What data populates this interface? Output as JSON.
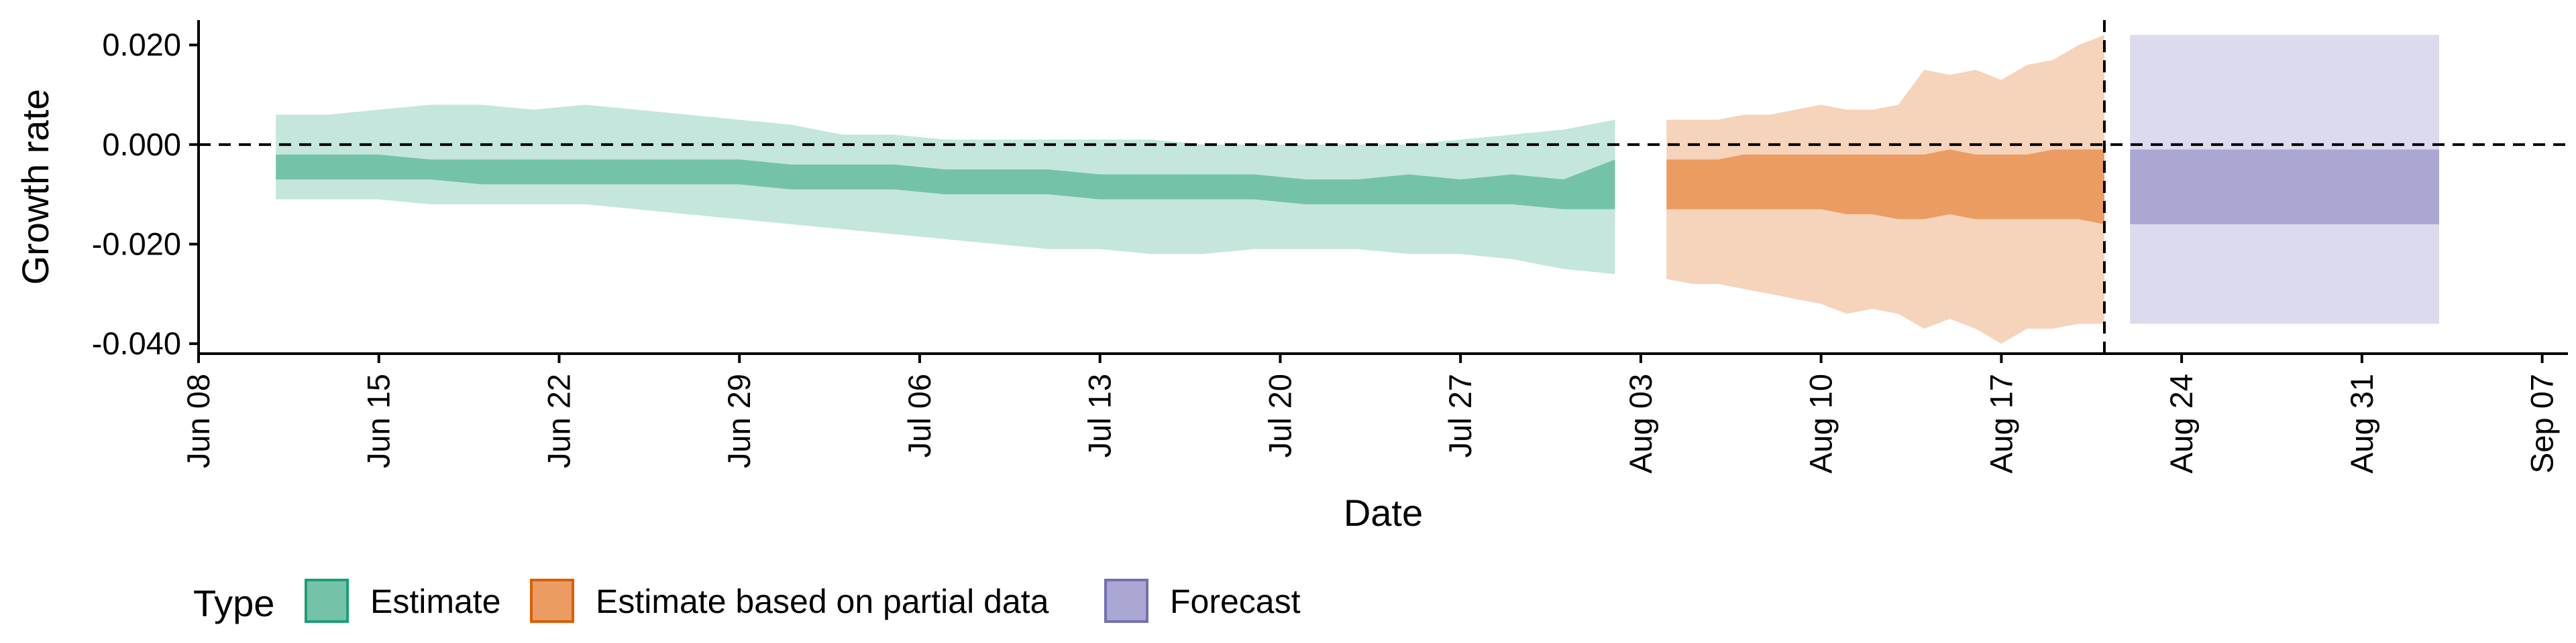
{
  "chart_data": {
    "type": "area",
    "xlabel": "Date",
    "ylabel": "Growth rate",
    "x_axis": {
      "type": "date",
      "range": [
        "2020-06-08",
        "2020-09-08"
      ],
      "ticks": [
        {
          "date": "2020-06-08",
          "label": "Jun 08"
        },
        {
          "date": "2020-06-15",
          "label": "Jun 15"
        },
        {
          "date": "2020-06-22",
          "label": "Jun 22"
        },
        {
          "date": "2020-06-29",
          "label": "Jun 29"
        },
        {
          "date": "2020-07-06",
          "label": "Jul 06"
        },
        {
          "date": "2020-07-13",
          "label": "Jul 13"
        },
        {
          "date": "2020-07-20",
          "label": "Jul 20"
        },
        {
          "date": "2020-07-27",
          "label": "Jul 27"
        },
        {
          "date": "2020-08-03",
          "label": "Aug 03"
        },
        {
          "date": "2020-08-10",
          "label": "Aug 10"
        },
        {
          "date": "2020-08-17",
          "label": "Aug 17"
        },
        {
          "date": "2020-08-24",
          "label": "Aug 24"
        },
        {
          "date": "2020-08-31",
          "label": "Aug 31"
        },
        {
          "date": "2020-09-07",
          "label": "Sep 07"
        }
      ]
    },
    "y_axis": {
      "range": [
        -0.042,
        0.025
      ],
      "ticks": [
        {
          "value": 0.02,
          "label": "0.020"
        },
        {
          "value": 0.0,
          "label": "0.000"
        },
        {
          "value": -0.02,
          "label": "-0.020"
        },
        {
          "value": -0.04,
          "label": "-0.040"
        }
      ]
    },
    "reference_lines": {
      "horizontal_y": 0.0,
      "vertical_x": "2020-08-21"
    },
    "legend": {
      "title": "Type",
      "position": "bottom-left",
      "items": [
        {
          "label": "Estimate",
          "color": "#1b9e77"
        },
        {
          "label": "Estimate based on partial data",
          "color": "#d95f02"
        },
        {
          "label": "Forecast",
          "color": "#7570b3"
        }
      ]
    },
    "series": [
      {
        "name": "Estimate",
        "color": "#1b9e77",
        "fill_outer": "#c4e6dc",
        "fill_inner": "#74c3a9",
        "dates": [
          "2020-06-11",
          "2020-06-13",
          "2020-06-15",
          "2020-06-17",
          "2020-06-19",
          "2020-06-21",
          "2020-06-23",
          "2020-06-25",
          "2020-06-27",
          "2020-06-29",
          "2020-07-01",
          "2020-07-03",
          "2020-07-05",
          "2020-07-07",
          "2020-07-09",
          "2020-07-11",
          "2020-07-13",
          "2020-07-15",
          "2020-07-17",
          "2020-07-19",
          "2020-07-21",
          "2020-07-23",
          "2020-07-25",
          "2020-07-27",
          "2020-07-29",
          "2020-07-31",
          "2020-08-02"
        ],
        "upper_90": [
          0.006,
          0.006,
          0.007,
          0.008,
          0.008,
          0.007,
          0.008,
          0.007,
          0.006,
          0.005,
          0.004,
          0.002,
          0.002,
          0.001,
          0.001,
          0.001,
          0.001,
          0.001,
          0.0,
          0.0,
          0.0,
          0.0,
          0.0,
          0.001,
          0.002,
          0.003,
          0.005
        ],
        "upper_50": [
          -0.002,
          -0.002,
          -0.002,
          -0.003,
          -0.003,
          -0.003,
          -0.003,
          -0.003,
          -0.003,
          -0.003,
          -0.004,
          -0.004,
          -0.004,
          -0.005,
          -0.005,
          -0.005,
          -0.006,
          -0.006,
          -0.006,
          -0.006,
          -0.007,
          -0.007,
          -0.006,
          -0.007,
          -0.006,
          -0.007,
          -0.003
        ],
        "lower_50": [
          -0.007,
          -0.007,
          -0.007,
          -0.007,
          -0.008,
          -0.008,
          -0.008,
          -0.008,
          -0.008,
          -0.008,
          -0.009,
          -0.009,
          -0.009,
          -0.01,
          -0.01,
          -0.01,
          -0.011,
          -0.011,
          -0.011,
          -0.011,
          -0.012,
          -0.012,
          -0.012,
          -0.012,
          -0.012,
          -0.013,
          -0.013
        ],
        "lower_90": [
          -0.011,
          -0.011,
          -0.011,
          -0.012,
          -0.012,
          -0.012,
          -0.012,
          -0.013,
          -0.014,
          -0.015,
          -0.016,
          -0.017,
          -0.018,
          -0.019,
          -0.02,
          -0.021,
          -0.021,
          -0.022,
          -0.022,
          -0.021,
          -0.021,
          -0.021,
          -0.022,
          -0.022,
          -0.023,
          -0.025,
          -0.026
        ]
      },
      {
        "name": "Estimate based on partial data",
        "color": "#d95f02",
        "fill_outer": "#f6d3bb",
        "fill_inner": "#eb9c62",
        "dates": [
          "2020-08-04",
          "2020-08-05",
          "2020-08-06",
          "2020-08-07",
          "2020-08-08",
          "2020-08-09",
          "2020-08-10",
          "2020-08-11",
          "2020-08-12",
          "2020-08-13",
          "2020-08-14",
          "2020-08-15",
          "2020-08-16",
          "2020-08-17",
          "2020-08-18",
          "2020-08-19",
          "2020-08-20",
          "2020-08-21"
        ],
        "upper_90": [
          0.005,
          0.005,
          0.005,
          0.006,
          0.006,
          0.007,
          0.008,
          0.007,
          0.007,
          0.008,
          0.015,
          0.014,
          0.015,
          0.013,
          0.016,
          0.017,
          0.02,
          0.022
        ],
        "upper_50": [
          -0.003,
          -0.003,
          -0.003,
          -0.002,
          -0.002,
          -0.002,
          -0.002,
          -0.002,
          -0.002,
          -0.002,
          -0.002,
          -0.001,
          -0.002,
          -0.002,
          -0.002,
          -0.001,
          -0.001,
          -0.001
        ],
        "lower_50": [
          -0.013,
          -0.013,
          -0.013,
          -0.013,
          -0.013,
          -0.013,
          -0.013,
          -0.014,
          -0.014,
          -0.015,
          -0.015,
          -0.014,
          -0.015,
          -0.015,
          -0.015,
          -0.015,
          -0.015,
          -0.016
        ],
        "lower_90": [
          -0.027,
          -0.028,
          -0.028,
          -0.029,
          -0.03,
          -0.031,
          -0.032,
          -0.034,
          -0.033,
          -0.034,
          -0.037,
          -0.035,
          -0.037,
          -0.04,
          -0.037,
          -0.037,
          -0.036,
          -0.036
        ]
      },
      {
        "name": "Forecast",
        "color": "#7570b3",
        "fill_outer": "#dcdaed",
        "fill_inner": "#aaa7d2",
        "dates": [
          "2020-08-22",
          "2020-09-03"
        ],
        "upper_90": [
          0.022,
          0.022
        ],
        "upper_50": [
          -0.001,
          -0.001
        ],
        "lower_50": [
          -0.016,
          -0.016
        ],
        "lower_90": [
          -0.036,
          -0.036
        ]
      }
    ]
  }
}
